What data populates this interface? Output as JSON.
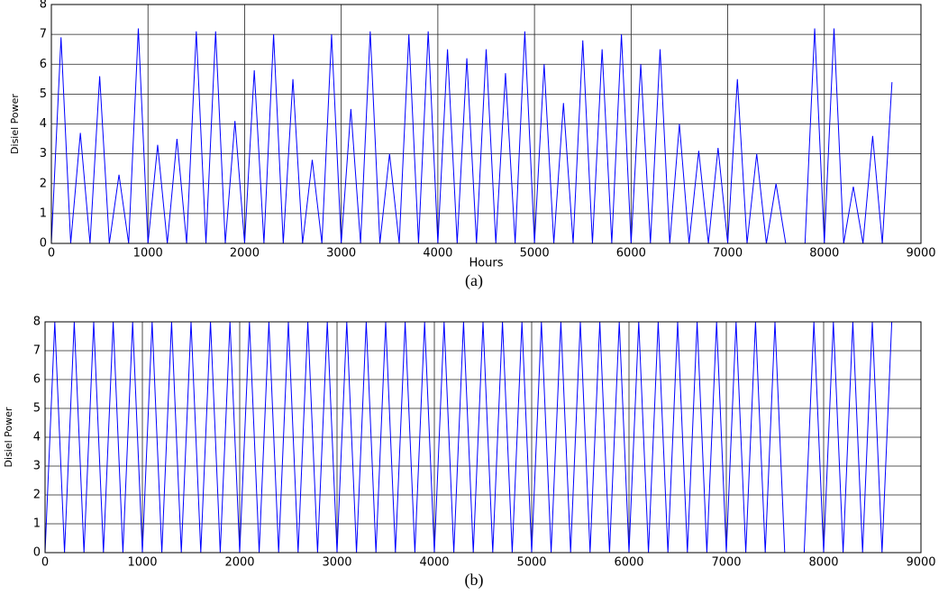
{
  "chart_data": [
    {
      "type": "line",
      "ylabel": "Disiel Power",
      "xlabel": "Hours",
      "caption": "(a)",
      "grid": true,
      "color": "#0000ff",
      "xlim": [
        0,
        9000
      ],
      "xticks": [
        0,
        1000,
        2000,
        3000,
        4000,
        5000,
        6000,
        7000,
        8000,
        9000
      ],
      "ylim": [
        0,
        8
      ],
      "yticks": [
        0,
        1,
        2,
        3,
        4,
        5,
        6,
        7,
        8
      ],
      "x": [
        0,
        100,
        200,
        300,
        400,
        500,
        600,
        700,
        800,
        900,
        1000,
        1100,
        1200,
        1300,
        1400,
        1500,
        1600,
        1700,
        1800,
        1900,
        2000,
        2100,
        2200,
        2300,
        2400,
        2500,
        2600,
        2700,
        2800,
        2900,
        3000,
        3100,
        3200,
        3300,
        3400,
        3500,
        3600,
        3700,
        3800,
        3900,
        4000,
        4100,
        4200,
        4300,
        4400,
        4500,
        4600,
        4700,
        4800,
        4900,
        5000,
        5100,
        5200,
        5300,
        5400,
        5500,
        5600,
        5700,
        5800,
        5900,
        6000,
        6100,
        6200,
        6300,
        6400,
        6500,
        6600,
        6700,
        6800,
        6900,
        7000,
        7100,
        7200,
        7300,
        7400,
        7500,
        7600,
        7700,
        7800,
        7900,
        8000,
        8100,
        8200,
        8300,
        8400,
        8500,
        8600,
        8700
      ],
      "values": [
        0,
        6.9,
        0,
        3.7,
        0,
        5.6,
        0,
        2.3,
        0,
        7.2,
        0,
        3.3,
        0,
        3.5,
        0,
        7.1,
        0,
        7.1,
        0,
        4.1,
        0,
        5.8,
        0,
        7.0,
        0,
        5.5,
        0,
        2.8,
        0,
        7.0,
        0,
        4.5,
        0,
        7.1,
        0,
        3.0,
        0,
        7.0,
        0,
        7.1,
        0,
        6.5,
        0,
        6.2,
        0,
        6.5,
        0,
        5.7,
        0,
        7.1,
        0,
        6.0,
        0,
        4.7,
        0,
        6.8,
        0,
        6.5,
        0,
        7.0,
        0,
        6.0,
        0,
        6.5,
        0,
        4.0,
        0,
        3.1,
        0,
        3.2,
        0,
        5.5,
        0,
        3.0,
        0,
        2.0,
        0,
        0,
        0,
        7.2,
        0,
        7.2,
        0,
        1.9,
        0,
        3.6,
        0,
        5.4
      ]
    },
    {
      "type": "line",
      "ylabel": "Disiel Power",
      "caption": "(b)",
      "grid": true,
      "color": "#0000ff",
      "xlim": [
        0,
        9000
      ],
      "xticks": [
        0,
        1000,
        2000,
        3000,
        4000,
        5000,
        6000,
        7000,
        8000,
        9000
      ],
      "ylim": [
        0,
        8
      ],
      "yticks": [
        0,
        1,
        2,
        3,
        4,
        5,
        6,
        7,
        8
      ],
      "x": [
        0,
        100,
        200,
        300,
        400,
        500,
        600,
        700,
        800,
        900,
        1000,
        1100,
        1200,
        1300,
        1400,
        1500,
        1600,
        1700,
        1800,
        1900,
        2000,
        2100,
        2200,
        2300,
        2400,
        2500,
        2600,
        2700,
        2800,
        2900,
        3000,
        3100,
        3200,
        3300,
        3400,
        3500,
        3600,
        3700,
        3800,
        3900,
        4000,
        4100,
        4200,
        4300,
        4400,
        4500,
        4600,
        4700,
        4800,
        4900,
        5000,
        5100,
        5200,
        5300,
        5400,
        5500,
        5600,
        5700,
        5800,
        5900,
        6000,
        6100,
        6200,
        6300,
        6400,
        6500,
        6600,
        6700,
        6800,
        6900,
        7000,
        7100,
        7200,
        7300,
        7400,
        7500,
        7600,
        7700,
        7800,
        7900,
        8000,
        8100,
        8200,
        8300,
        8400,
        8500,
        8600,
        8700
      ],
      "values": [
        0,
        8,
        0,
        8,
        0,
        8,
        0,
        8,
        0,
        8,
        0,
        8,
        0,
        8,
        0,
        8,
        0,
        8,
        0,
        8,
        0,
        8,
        0,
        8,
        0,
        8,
        0,
        8,
        0,
        8,
        0,
        8,
        0,
        8,
        0,
        8,
        0,
        8,
        0,
        8,
        0,
        8,
        0,
        8,
        0,
        8,
        0,
        8,
        0,
        8,
        0,
        8,
        0,
        8,
        0,
        8,
        0,
        8,
        0,
        8,
        0,
        8,
        0,
        8,
        0,
        8,
        0,
        8,
        0,
        8,
        0,
        8,
        0,
        8,
        0,
        8,
        0,
        0,
        0,
        8,
        0,
        8,
        0,
        8,
        0,
        8,
        0,
        8
      ]
    }
  ]
}
